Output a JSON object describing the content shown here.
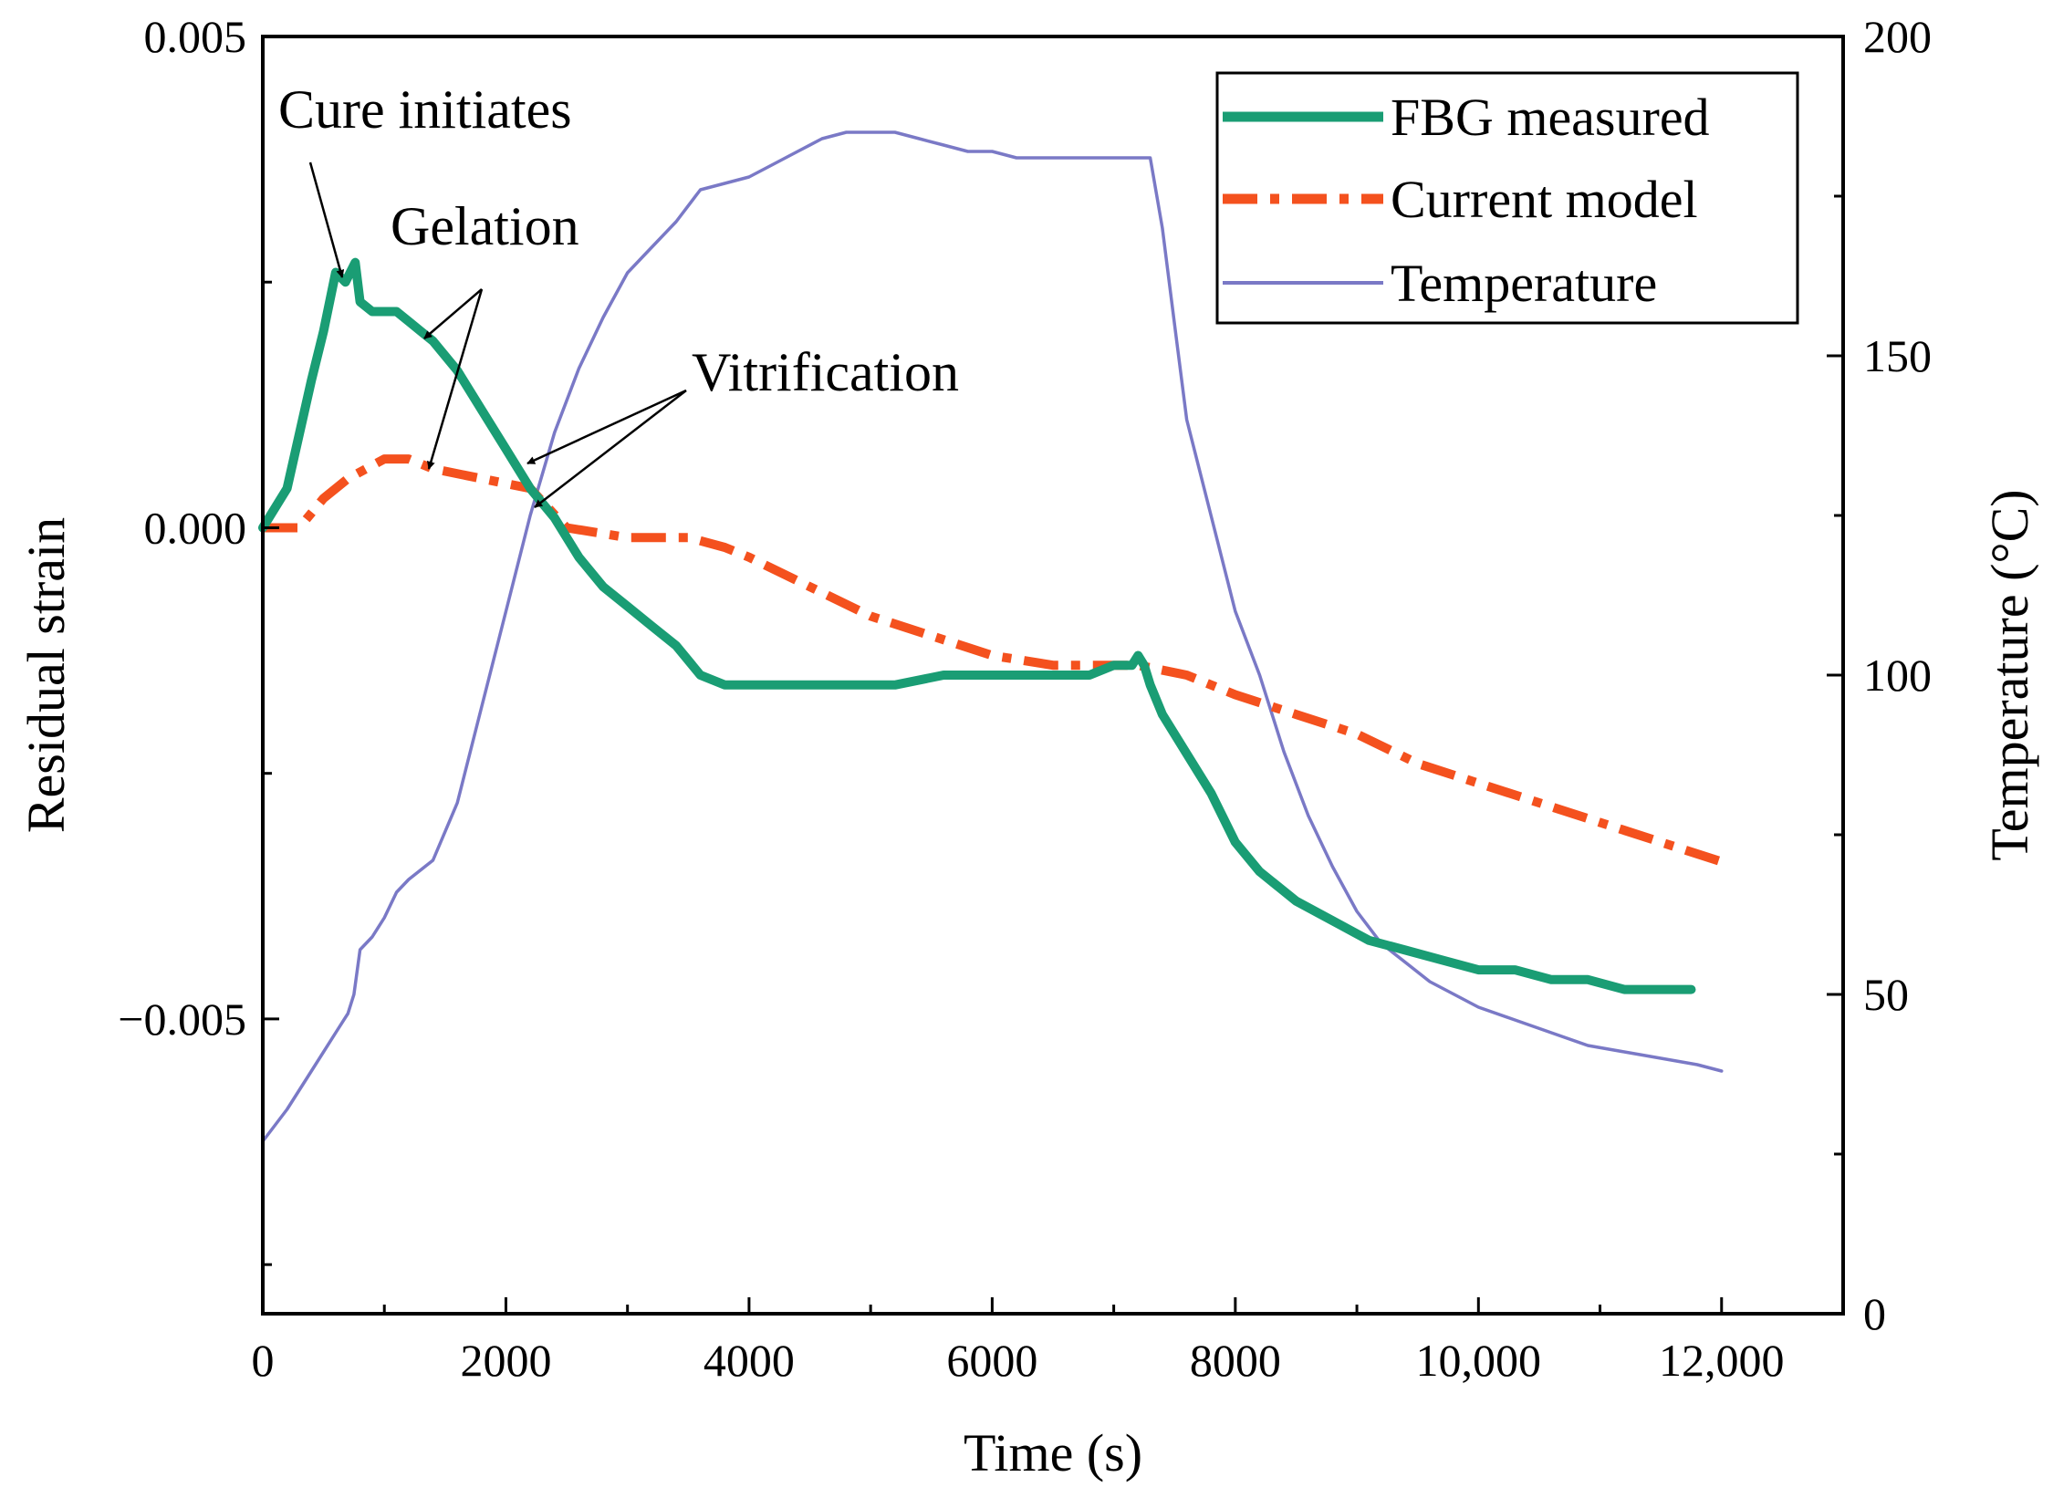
{
  "chart_data": {
    "type": "line",
    "title": "",
    "xlabel": "Time (s)",
    "ylabel": "Residual strain",
    "y2label": "Temperature (°C)",
    "xlim": [
      0,
      13000
    ],
    "ylim": [
      -0.008,
      0.005
    ],
    "y2lim": [
      0,
      200
    ],
    "grid": false,
    "legend_position": "top-right",
    "x_ticks": [
      {
        "value": 0,
        "label": "0"
      },
      {
        "value": 2000,
        "label": "2000"
      },
      {
        "value": 4000,
        "label": "4000"
      },
      {
        "value": 6000,
        "label": "6000"
      },
      {
        "value": 8000,
        "label": "8000"
      },
      {
        "value": 10000,
        "label": "10,000"
      },
      {
        "value": 12000,
        "label": "12,000"
      }
    ],
    "y_ticks": [
      {
        "value": 0.005,
        "label": "0.005"
      },
      {
        "value": 0.0,
        "label": "0.000"
      },
      {
        "value": -0.005,
        "label": "−0.005"
      }
    ],
    "y2_ticks": [
      {
        "value": 200,
        "label": "200"
      },
      {
        "value": 150,
        "label": "150"
      },
      {
        "value": 100,
        "label": "100"
      },
      {
        "value": 50,
        "label": "50"
      },
      {
        "value": 0,
        "label": "0"
      }
    ],
    "series": [
      {
        "name": "FBG measured",
        "axis": "left",
        "color": "#1a9d74",
        "style": "solid-thick",
        "x": [
          0,
          200,
          400,
          500,
          600,
          680,
          720,
          760,
          800,
          900,
          1000,
          1100,
          1200,
          1300,
          1400,
          1600,
          1800,
          2000,
          2200,
          2400,
          2600,
          2800,
          3000,
          3200,
          3400,
          3600,
          3800,
          4000,
          4400,
          4800,
          5200,
          5600,
          6000,
          6400,
          6800,
          7000,
          7150,
          7200,
          7250,
          7300,
          7400,
          7600,
          7800,
          8000,
          8200,
          8500,
          8800,
          9100,
          9400,
          9700,
          10000,
          10300,
          10600,
          10900,
          11200,
          11500,
          11750
        ],
        "values": [
          0.0,
          0.0004,
          0.0015,
          0.002,
          0.0026,
          0.0025,
          0.0026,
          0.0027,
          0.0023,
          0.0022,
          0.0022,
          0.0022,
          0.0021,
          0.002,
          0.0019,
          0.0016,
          0.0012,
          0.0008,
          0.0004,
          0.0001,
          -0.0003,
          -0.0006,
          -0.0008,
          -0.001,
          -0.0012,
          -0.0015,
          -0.0016,
          -0.0016,
          -0.0016,
          -0.0016,
          -0.0016,
          -0.0015,
          -0.0015,
          -0.0015,
          -0.0015,
          -0.0014,
          -0.0014,
          -0.0013,
          -0.0014,
          -0.0016,
          -0.0019,
          -0.0023,
          -0.0027,
          -0.0032,
          -0.0035,
          -0.0038,
          -0.004,
          -0.0042,
          -0.0043,
          -0.0044,
          -0.0045,
          -0.0045,
          -0.0046,
          -0.0046,
          -0.0047,
          -0.0047,
          -0.0047
        ]
      },
      {
        "name": "Current model",
        "axis": "left",
        "color": "#f4511e",
        "style": "dash-dot",
        "x": [
          0,
          300,
          500,
          700,
          1000,
          1200,
          1400,
          1800,
          2200,
          2500,
          3000,
          3500,
          3800,
          4000,
          4500,
          5000,
          5500,
          6000,
          6500,
          7000,
          7200,
          7600,
          8000,
          8500,
          9000,
          9500,
          10000,
          10500,
          11000,
          11500,
          12000
        ],
        "values": [
          0.0,
          0.0,
          0.0003,
          0.0005,
          0.0007,
          0.0007,
          0.0006,
          0.0005,
          0.0004,
          0.0,
          -0.0001,
          -0.0001,
          -0.0002,
          -0.0003,
          -0.0006,
          -0.0009,
          -0.0011,
          -0.0013,
          -0.0014,
          -0.0014,
          -0.0014,
          -0.0015,
          -0.0017,
          -0.0019,
          -0.0021,
          -0.0024,
          -0.0026,
          -0.0028,
          -0.003,
          -0.0032,
          -0.0034
        ]
      },
      {
        "name": "Temperature",
        "axis": "right",
        "color": "#7a79c6",
        "style": "solid-thin",
        "x": [
          0,
          200,
          400,
          600,
          700,
          750,
          800,
          900,
          1000,
          1100,
          1200,
          1400,
          1600,
          1800,
          2000,
          2200,
          2400,
          2600,
          2800,
          3000,
          3200,
          3400,
          3600,
          3800,
          4000,
          4200,
          4400,
          4600,
          4800,
          5000,
          5200,
          5400,
          5600,
          5800,
          6000,
          6200,
          6400,
          6600,
          6800,
          7000,
          7200,
          7300,
          7400,
          7500,
          7600,
          7800,
          8000,
          8200,
          8400,
          8600,
          8800,
          9000,
          9200,
          9400,
          9600,
          9800,
          10000,
          10300,
          10600,
          10900,
          11200,
          11500,
          11800,
          12000
        ],
        "values": [
          27,
          32,
          38,
          44,
          47,
          50,
          57,
          59,
          62,
          66,
          68,
          71,
          80,
          95,
          110,
          125,
          138,
          148,
          156,
          163,
          167,
          171,
          176,
          177,
          178,
          180,
          182,
          184,
          185,
          185,
          185,
          184,
          183,
          182,
          182,
          181,
          181,
          181,
          181,
          181,
          181,
          181,
          170,
          155,
          140,
          125,
          110,
          100,
          88,
          78,
          70,
          63,
          58,
          55,
          52,
          50,
          48,
          46,
          44,
          42,
          41,
          40,
          39,
          38
        ]
      }
    ],
    "annotations": [
      {
        "text": "Cure initiates",
        "points_to": [
          {
            "x": 700,
            "y": 0.0025
          }
        ]
      },
      {
        "text": "Gelation",
        "points_to": [
          {
            "x": 1300,
            "y": 0.002
          },
          {
            "x": 1350,
            "y": 0.0007
          }
        ]
      },
      {
        "text": "Vitrification",
        "points_to": [
          {
            "x": 2200,
            "y": 0.0007
          },
          {
            "x": 2200,
            "y": 0.0002
          }
        ]
      }
    ]
  }
}
